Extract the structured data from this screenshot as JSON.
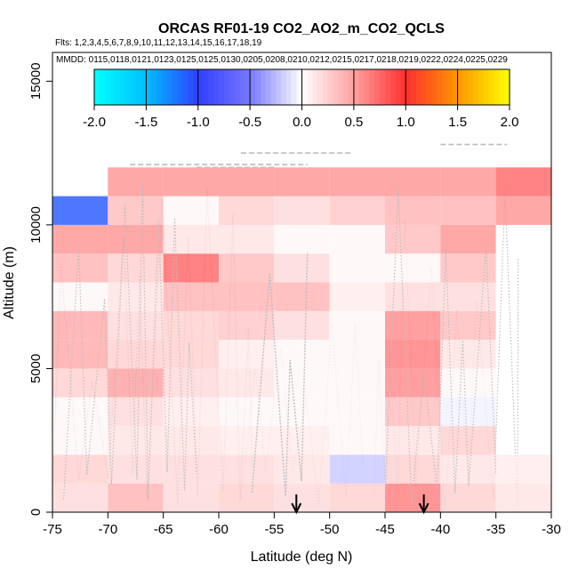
{
  "chart_data": {
    "type": "heatmap",
    "title": "ORCAS RF01-19 CO2_AO2_m_CO2_QCLS",
    "subtitle_flights": "Flts: 1,2,3,4,5,6,7,8,9,10,11,12,13,14,15,16,17,18,19",
    "subtitle_dates": "MMDD: 0115,0118,0121,0123,0125,0125,0130,0205,0208,0210,0212,0215,0217,0218,0219,0222,0224,0225,0229",
    "xlabel": "Latitude (deg N)",
    "ylabel": "Altitude (m)",
    "xlim": [
      -75,
      -30
    ],
    "ylim": [
      0,
      16000
    ],
    "xticks": [
      "-75",
      "-70",
      "-65",
      "-60",
      "-55",
      "-50",
      "-45",
      "-40",
      "-35",
      "-30"
    ],
    "yticks": [
      "0",
      "5000",
      "10000",
      "15000"
    ],
    "colorbar": {
      "min": -2.0,
      "max": 2.0,
      "ticks": [
        "-2.0",
        "-1.5",
        "-1.0",
        "-0.5",
        "0.0",
        "0.5",
        "1.0",
        "1.5",
        "2.0"
      ]
    },
    "lat_bins": [
      -75,
      -70,
      -65,
      -60,
      -55,
      -50,
      -45,
      -40,
      -35,
      -30
    ],
    "alt_bins": [
      0,
      1000,
      2000,
      3000,
      4000,
      5000,
      6000,
      7000,
      8000,
      9000,
      10000,
      11000,
      12000
    ],
    "cells": [
      [
        0.2,
        0.4,
        0.2,
        0.25,
        0.2,
        0.25,
        0.65,
        0.25,
        0.15
      ],
      [
        0.25,
        0.2,
        0.2,
        0.2,
        0.15,
        -0.2,
        0.25,
        0.15,
        0.1
      ],
      [
        0.05,
        0.15,
        0.15,
        0.1,
        0.1,
        0.05,
        0.15,
        0.25,
        null
      ],
      [
        0.05,
        0.2,
        0.1,
        0.05,
        0.05,
        0.05,
        0.35,
        -0.05,
        null
      ],
      [
        0.25,
        0.5,
        0.2,
        0.15,
        0.05,
        0.05,
        0.6,
        0.05,
        null
      ],
      [
        0.45,
        0.25,
        0.25,
        0.1,
        0.05,
        0.05,
        0.65,
        0.15,
        null
      ],
      [
        0.45,
        0.2,
        0.25,
        0.3,
        0.2,
        0.05,
        0.6,
        0.35,
        null
      ],
      [
        0.05,
        0.15,
        0.4,
        0.4,
        0.4,
        0.1,
        0.2,
        0.2,
        null
      ],
      [
        0.4,
        0.25,
        0.75,
        0.35,
        0.2,
        0.05,
        0.05,
        0.35,
        null
      ],
      [
        0.55,
        0.55,
        0.15,
        0.15,
        0.05,
        0.05,
        0.35,
        0.55,
        null
      ],
      [
        -1.1,
        0.35,
        0.05,
        0.25,
        0.2,
        0.3,
        0.4,
        0.4,
        0.55
      ],
      [
        null,
        0.55,
        0.55,
        0.55,
        0.55,
        0.55,
        0.55,
        0.55,
        0.75
      ]
    ],
    "arrows_latitude": [
      -53,
      -41.5
    ],
    "flight_tracks_color": "#bebebe"
  }
}
